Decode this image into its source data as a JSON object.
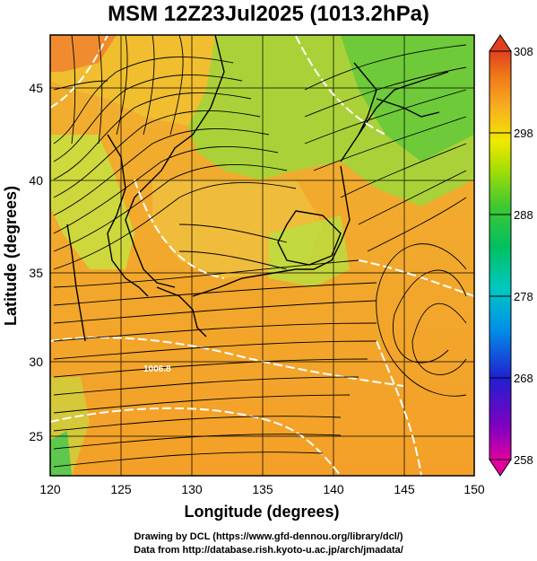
{
  "title": "MSM 12Z23Jul2025 (1013.2hPa)",
  "x_axis": {
    "label": "Longitude (degrees)",
    "ticks": [
      "120",
      "125",
      "130",
      "135",
      "140",
      "145",
      "150"
    ],
    "range": [
      120,
      150
    ]
  },
  "y_axis": {
    "label": "Latitude (degrees)",
    "ticks": [
      "25",
      "30",
      "35",
      "40",
      "45"
    ],
    "range": [
      22.8,
      48.0
    ]
  },
  "colorbar": {
    "ticks": [
      "308",
      "298",
      "288",
      "278",
      "268",
      "258"
    ],
    "range": [
      258,
      308
    ],
    "colors": [
      "#e0006e",
      "#8000c0",
      "#2020d0",
      "#0070e0",
      "#00c8c8",
      "#00c070",
      "#30c030",
      "#a0e000",
      "#e8e800",
      "#f8b020",
      "#f08010",
      "#e04020"
    ]
  },
  "annotations": {
    "isobar_label": "1006.8"
  },
  "credits": {
    "line1": "Drawing by DCL (https://www.gfd-dennou.org/library/dcl/)",
    "line2": "Data from http://database.rish.kyoto-u.ac.jp/arch/jmadata/"
  }
}
